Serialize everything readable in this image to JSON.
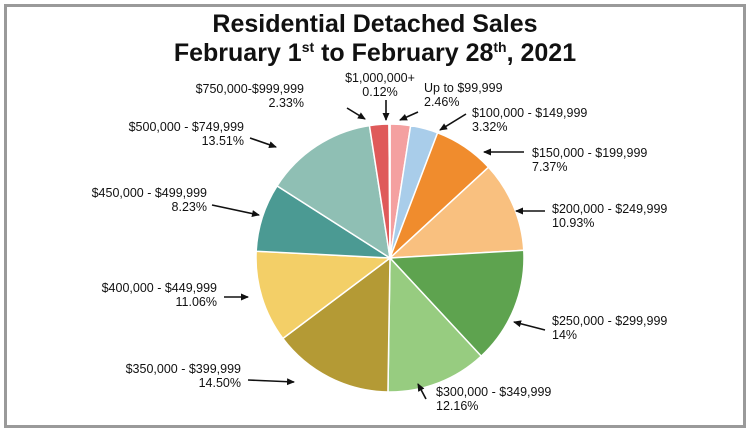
{
  "title": {
    "line1": "Residential Detached Sales",
    "line2_a": "February 1",
    "line2_sup1": "st",
    "line2_b": " to February 28",
    "line2_sup2": "th",
    "line2_c": ", 2021"
  },
  "chart_data": {
    "type": "pie",
    "start_position": "top",
    "direction": "clockwise",
    "slices": [
      {
        "label": "Up to $99,999",
        "percent_label": "2.46%",
        "value": 2.46,
        "color": "#f4a0a0"
      },
      {
        "label": "$100,000 - $149,999",
        "percent_label": "3.32%",
        "value": 3.32,
        "color": "#a9cdea"
      },
      {
        "label": "$150,000 - $199,999",
        "percent_label": "7.37%",
        "value": 7.37,
        "color": "#f08c2d"
      },
      {
        "label": "$200,000 - $249,999",
        "percent_label": "10.93%",
        "value": 10.93,
        "color": "#f9c07f"
      },
      {
        "label": "$250,000 - $299,999",
        "percent_label": "14%",
        "value": 14.0,
        "color": "#5ea34f"
      },
      {
        "label": "$300,000 - $349,999",
        "percent_label": "12.16%",
        "value": 12.16,
        "color": "#97cc80"
      },
      {
        "label": "$350,000 - $399,999",
        "percent_label": "14.50%",
        "value": 14.5,
        "color": "#b49a35"
      },
      {
        "label": "$400,000 - $449,999",
        "percent_label": "11.06%",
        "value": 11.06,
        "color": "#f3cf67"
      },
      {
        "label": "$450,000 - $499,999",
        "percent_label": "8.23%",
        "value": 8.23,
        "color": "#4b9a93"
      },
      {
        "label": "$500,000 - $749,999",
        "percent_label": "13.51%",
        "value": 13.51,
        "color": "#8fbfb4"
      },
      {
        "label": "$750,000-$999,999",
        "percent_label": "2.33%",
        "value": 2.33,
        "color": "#df5a5a"
      },
      {
        "label": "$1,000,000+",
        "percent_label": "0.12%",
        "value": 0.12,
        "color": "#c9302c"
      }
    ]
  }
}
